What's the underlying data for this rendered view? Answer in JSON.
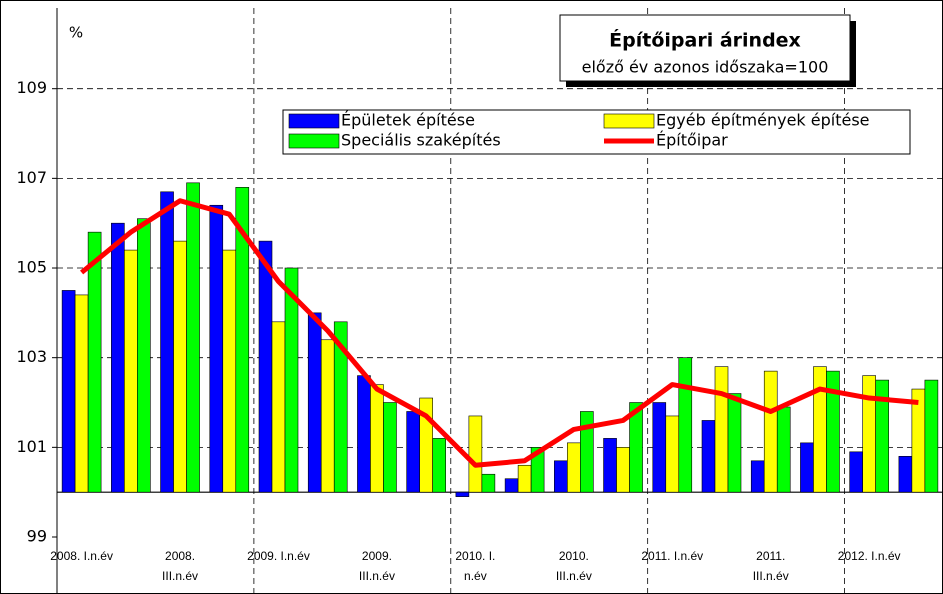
{
  "chart_data": {
    "type": "bar",
    "title": "Építőipari árindex",
    "subtitle": "előző év azonos időszaka=100",
    "y_label": "%",
    "categories": [
      "2008. I.n.év",
      null,
      "2008.\nIII.n.év",
      null,
      "2009. I.n.év",
      null,
      "2009.\nIII.n.év",
      null,
      "2010. I.\nn.év",
      null,
      "2010.\nIII.n.év",
      null,
      "2011. I.n.év",
      null,
      "2011.\nIII.n.év",
      null,
      "2012. I.n.év",
      null
    ],
    "baseline": 100,
    "ylim": [
      99,
      110.8
    ],
    "yticks": [
      99,
      101,
      103,
      105,
      107,
      109
    ],
    "grid": true,
    "series": [
      {
        "name": "Épületek építése",
        "color": "#0000ff",
        "values": [
          104.5,
          106.0,
          106.7,
          106.4,
          105.6,
          104.0,
          102.6,
          101.8,
          99.9,
          100.3,
          100.7,
          101.2,
          102.0,
          101.6,
          100.7,
          101.1,
          100.9,
          100.8
        ]
      },
      {
        "name": "Egyéb építmények építése",
        "color": "#ffff00",
        "values": [
          104.4,
          105.4,
          105.6,
          105.4,
          103.8,
          103.4,
          102.4,
          102.1,
          101.7,
          100.6,
          101.1,
          101.0,
          101.7,
          102.8,
          102.7,
          102.8,
          102.6,
          102.3
        ]
      },
      {
        "name": "Speciális szaképítés",
        "color": "#00ff00",
        "values": [
          105.8,
          106.1,
          106.9,
          106.8,
          105.0,
          103.8,
          102.0,
          101.2,
          100.4,
          101.0,
          101.8,
          102.0,
          103.0,
          102.2,
          101.9,
          102.7,
          102.5,
          102.5
        ]
      },
      {
        "name": "Építőipar",
        "type": "line",
        "color": "#ff0000",
        "values": [
          104.9,
          105.8,
          106.5,
          106.2,
          104.7,
          103.6,
          102.3,
          101.7,
          100.6,
          100.7,
          101.4,
          101.6,
          102.4,
          102.2,
          101.8,
          102.3,
          102.1,
          102.0
        ]
      }
    ]
  }
}
